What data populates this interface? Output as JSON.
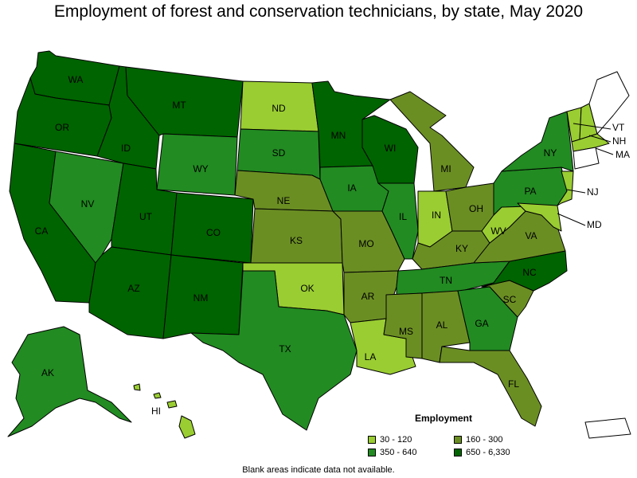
{
  "title": "Employment of forest and conservation technicians, by state, May 2020",
  "note": "Blank areas indicate data not available.",
  "legend": {
    "title": "Employment",
    "items": [
      {
        "label": "30 - 120",
        "color": "#9acd32"
      },
      {
        "label": "160 - 300",
        "color": "#6b8e23"
      },
      {
        "label": "350 - 640",
        "color": "#228b22"
      },
      {
        "label": "650 - 6,330",
        "color": "#006400"
      }
    ]
  },
  "states": [
    {
      "abbr": "WA",
      "bin": 3
    },
    {
      "abbr": "OR",
      "bin": 3
    },
    {
      "abbr": "CA",
      "bin": 3
    },
    {
      "abbr": "NV",
      "bin": 2
    },
    {
      "abbr": "ID",
      "bin": 3
    },
    {
      "abbr": "MT",
      "bin": 3
    },
    {
      "abbr": "WY",
      "bin": 2
    },
    {
      "abbr": "UT",
      "bin": 3
    },
    {
      "abbr": "CO",
      "bin": 3
    },
    {
      "abbr": "AZ",
      "bin": 3
    },
    {
      "abbr": "NM",
      "bin": 3
    },
    {
      "abbr": "ND",
      "bin": 0
    },
    {
      "abbr": "SD",
      "bin": 2
    },
    {
      "abbr": "NE",
      "bin": 1
    },
    {
      "abbr": "KS",
      "bin": 1
    },
    {
      "abbr": "OK",
      "bin": 0
    },
    {
      "abbr": "TX",
      "bin": 2
    },
    {
      "abbr": "MN",
      "bin": 3
    },
    {
      "abbr": "IA",
      "bin": 2
    },
    {
      "abbr": "MO",
      "bin": 1
    },
    {
      "abbr": "AR",
      "bin": 1
    },
    {
      "abbr": "LA",
      "bin": 0
    },
    {
      "abbr": "WI",
      "bin": 3
    },
    {
      "abbr": "IL",
      "bin": 2
    },
    {
      "abbr": "MI",
      "bin": 1
    },
    {
      "abbr": "IN",
      "bin": 0
    },
    {
      "abbr": "OH",
      "bin": 1
    },
    {
      "abbr": "KY",
      "bin": 1
    },
    {
      "abbr": "TN",
      "bin": 2
    },
    {
      "abbr": "MS",
      "bin": 1
    },
    {
      "abbr": "AL",
      "bin": 1
    },
    {
      "abbr": "GA",
      "bin": 2
    },
    {
      "abbr": "FL",
      "bin": 1
    },
    {
      "abbr": "SC",
      "bin": 1
    },
    {
      "abbr": "NC",
      "bin": 3
    },
    {
      "abbr": "VA",
      "bin": 1
    },
    {
      "abbr": "WV",
      "bin": 0
    },
    {
      "abbr": "PA",
      "bin": 2
    },
    {
      "abbr": "NY",
      "bin": 2
    },
    {
      "abbr": "VT",
      "bin": 0
    },
    {
      "abbr": "NH",
      "bin": 0
    },
    {
      "abbr": "MA",
      "bin": 0
    },
    {
      "abbr": "NJ",
      "bin": 0
    },
    {
      "abbr": "MD",
      "bin": 0
    },
    {
      "abbr": "AK",
      "bin": 2
    },
    {
      "abbr": "HI",
      "bin": 0
    }
  ]
}
